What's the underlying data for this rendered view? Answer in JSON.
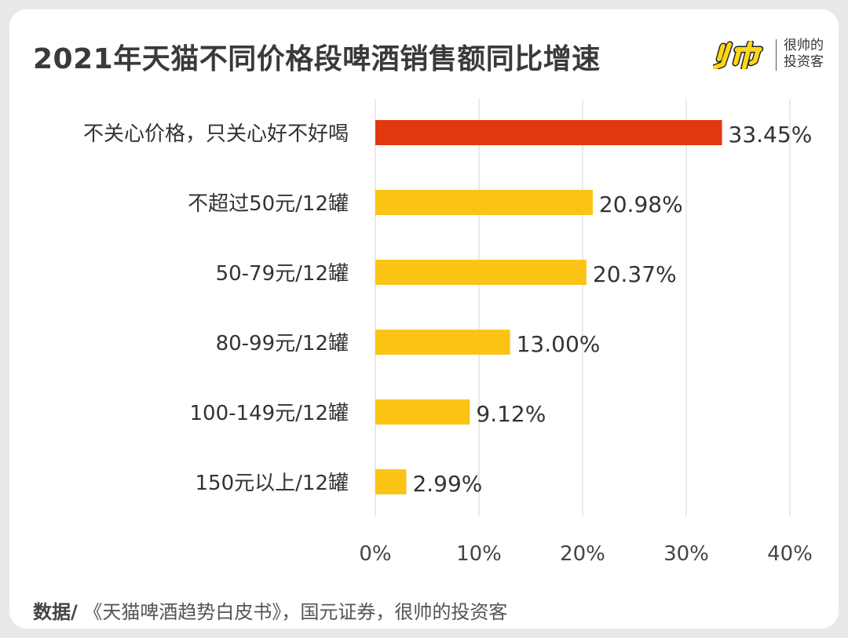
{
  "header": {
    "title": "2021年天猫不同价格段啤酒销售额同比增速",
    "brand": {
      "line1": "很帅的",
      "line2": "投资客",
      "logo_icon": "shuai-logo-icon"
    }
  },
  "footer": {
    "source_label": "数据/",
    "source_text": " 《天猫啤酒趋势白皮书》，国元证券，很帅的投资客"
  },
  "chart_data": {
    "type": "bar",
    "orientation": "horizontal",
    "title": "2021年天猫不同价格段啤酒销售额同比增速",
    "categories": [
      "不关心价格，只关心好不好喝",
      "不超过50元/12罐",
      "50-79元/12罐",
      "80-99元/12罐",
      "100-149元/12罐",
      "150元以上/12罐"
    ],
    "values": [
      33.45,
      20.98,
      20.37,
      13.0,
      9.12,
      2.99
    ],
    "value_labels": [
      "33.45%",
      "20.98%",
      "20.37%",
      "13.00%",
      "9.12%",
      "2.99%"
    ],
    "xlim": [
      0,
      40
    ],
    "x_ticks": [
      "0%",
      "10%",
      "20%",
      "30%",
      "40%"
    ],
    "grid": "vertical",
    "legend": "none",
    "colors": {
      "highlight": "#e2380d",
      "default": "#fbc314",
      "grid": "#e3e3e3",
      "text": "#333333"
    }
  }
}
